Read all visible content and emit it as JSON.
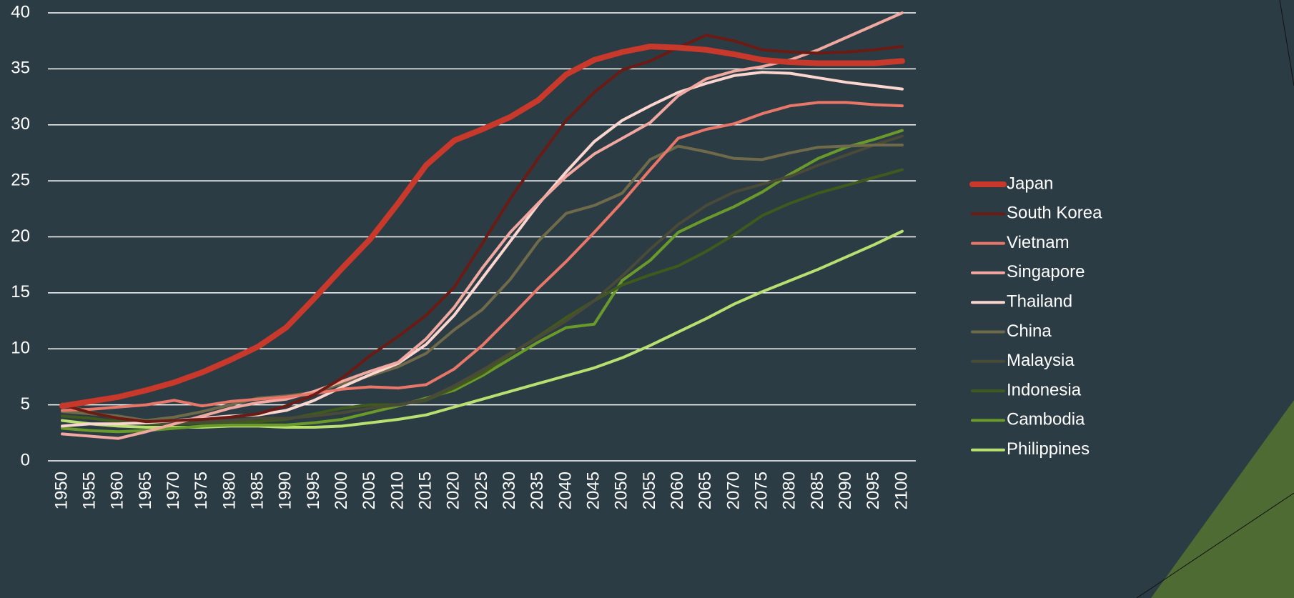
{
  "chart_data": {
    "type": "line",
    "x": [
      1950,
      1955,
      1960,
      1965,
      1970,
      1975,
      1980,
      1985,
      1990,
      1995,
      2000,
      2005,
      2010,
      2015,
      2020,
      2025,
      2030,
      2035,
      2040,
      2045,
      2050,
      2055,
      2060,
      2065,
      2070,
      2075,
      2080,
      2085,
      2090,
      2095,
      2100
    ],
    "xlim": [
      1950,
      2100
    ],
    "xticks": [
      1950,
      1955,
      1960,
      1965,
      1970,
      1975,
      1980,
      1985,
      1990,
      1995,
      2000,
      2005,
      2010,
      2015,
      2020,
      2025,
      2030,
      2035,
      2040,
      2045,
      2050,
      2055,
      2060,
      2065,
      2070,
      2075,
      2080,
      2085,
      2090,
      2095,
      2100
    ],
    "ylim": [
      0,
      40
    ],
    "yticks": [
      0,
      5,
      10,
      15,
      20,
      25,
      30,
      35,
      40
    ],
    "grid": true,
    "legend": "right",
    "series": [
      {
        "name": "Japan",
        "color": "#c8392b",
        "values": [
          4.9,
          5.3,
          5.7,
          6.3,
          7.0,
          7.9,
          9.0,
          10.2,
          11.9,
          14.5,
          17.2,
          19.8,
          23.0,
          26.4,
          28.6,
          29.6,
          30.7,
          32.2,
          34.5,
          35.8,
          36.5,
          37.0,
          36.9,
          36.7,
          36.3,
          35.8,
          35.6,
          35.5,
          35.5,
          35.5,
          35.7
        ]
      },
      {
        "name": "South Korea",
        "color": "#6b1a14",
        "values": [
          5.0,
          4.3,
          3.8,
          3.5,
          3.6,
          3.7,
          3.9,
          4.2,
          4.9,
          5.9,
          7.4,
          9.4,
          11.1,
          13.0,
          15.5,
          19.4,
          23.4,
          27.0,
          30.4,
          32.9,
          34.9,
          35.7,
          36.9,
          38.0,
          37.5,
          36.7,
          36.5,
          36.4,
          36.5,
          36.7,
          37.0
        ]
      },
      {
        "name": "Vietnam",
        "color": "#e8776a",
        "values": [
          4.5,
          4.6,
          4.8,
          5.0,
          5.4,
          4.9,
          5.3,
          5.5,
          5.7,
          6.0,
          6.4,
          6.6,
          6.5,
          6.8,
          8.2,
          10.3,
          12.8,
          15.4,
          17.8,
          20.4,
          23.1,
          26.0,
          28.8,
          29.6,
          30.1,
          31.0,
          31.7,
          32.0,
          32.0,
          31.8,
          31.7
        ]
      },
      {
        "name": "Singapore",
        "color": "#f0a8a0",
        "values": [
          2.4,
          2.2,
          2.0,
          2.6,
          3.3,
          4.0,
          4.7,
          5.2,
          5.5,
          6.2,
          7.1,
          8.0,
          8.8,
          10.9,
          13.7,
          17.2,
          20.4,
          23.0,
          25.4,
          27.4,
          28.8,
          30.2,
          32.6,
          34.1,
          34.8,
          35.2,
          35.8,
          36.7,
          37.8,
          38.9,
          40.0
        ]
      },
      {
        "name": "Thailand",
        "color": "#fbd5d0",
        "values": [
          3.1,
          3.3,
          3.3,
          3.4,
          3.6,
          3.8,
          4.0,
          4.1,
          4.5,
          5.4,
          6.6,
          7.7,
          8.7,
          10.4,
          13.0,
          16.3,
          19.6,
          22.9,
          25.8,
          28.5,
          30.4,
          31.7,
          32.9,
          33.7,
          34.4,
          34.7,
          34.6,
          34.2,
          33.8,
          33.5,
          33.2
        ]
      },
      {
        "name": "China",
        "color": "#6f6a4a",
        "values": [
          4.4,
          4.2,
          4.0,
          3.6,
          3.9,
          4.4,
          5.0,
          5.6,
          5.8,
          6.1,
          6.9,
          7.6,
          8.4,
          9.6,
          11.7,
          13.5,
          16.2,
          19.6,
          22.1,
          22.8,
          23.9,
          26.9,
          28.1,
          27.6,
          27.0,
          26.9,
          27.5,
          28.0,
          28.1,
          28.2,
          28.2
        ]
      },
      {
        "name": "Malaysia",
        "color": "#4a4a38",
        "values": [
          5.1,
          4.4,
          3.7,
          3.5,
          3.4,
          3.5,
          3.6,
          3.8,
          3.8,
          4.0,
          4.3,
          4.7,
          5.0,
          5.5,
          6.7,
          8.1,
          9.6,
          11.0,
          12.5,
          14.3,
          16.5,
          18.9,
          21.1,
          22.8,
          24.0,
          24.7,
          25.4,
          26.4,
          27.3,
          28.2,
          29.0
        ]
      },
      {
        "name": "Indonesia",
        "color": "#3f5a1c",
        "values": [
          4.0,
          3.8,
          3.5,
          3.3,
          3.3,
          3.4,
          3.5,
          3.5,
          3.7,
          4.2,
          4.7,
          5.0,
          5.0,
          5.4,
          6.5,
          7.8,
          9.5,
          11.1,
          12.8,
          14.3,
          15.7,
          16.6,
          17.4,
          18.7,
          20.2,
          21.9,
          23.0,
          23.9,
          24.6,
          25.3,
          26.0
        ]
      },
      {
        "name": "Cambodia",
        "color": "#6a9a2a",
        "values": [
          2.9,
          2.7,
          2.6,
          2.7,
          2.9,
          3.1,
          3.2,
          3.2,
          3.2,
          3.4,
          3.7,
          4.3,
          4.9,
          5.6,
          6.3,
          7.6,
          9.1,
          10.6,
          11.9,
          12.2,
          16.1,
          17.9,
          20.4,
          21.6,
          22.7,
          24.0,
          25.6,
          27.0,
          28.0,
          28.7,
          29.5
        ]
      },
      {
        "name": "Philippines",
        "color": "#b8e070",
        "values": [
          3.6,
          3.3,
          3.1,
          3.0,
          3.0,
          3.0,
          3.1,
          3.1,
          3.0,
          3.0,
          3.1,
          3.4,
          3.7,
          4.1,
          4.8,
          5.5,
          6.2,
          6.9,
          7.6,
          8.3,
          9.2,
          10.3,
          11.5,
          12.7,
          14.0,
          15.1,
          16.1,
          17.1,
          18.2,
          19.3,
          20.5
        ]
      }
    ]
  }
}
